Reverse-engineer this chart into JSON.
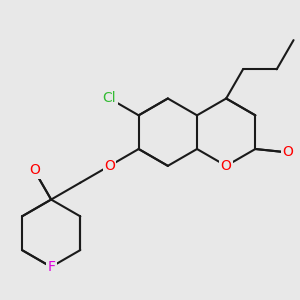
{
  "bg_color": "#e8e8e8",
  "bond_color": "#1a1a1a",
  "bond_width": 1.5,
  "dbo": 0.018,
  "atom_colors": {
    "O": "#ff0000",
    "Cl": "#33bb33",
    "F": "#dd00dd",
    "C": "#1a1a1a"
  },
  "font_size": 10
}
